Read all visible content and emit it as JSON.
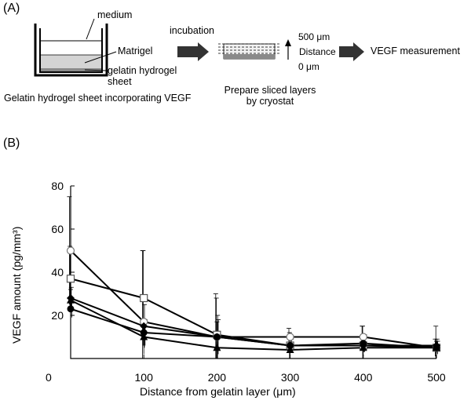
{
  "panel_a": {
    "label": "(A)",
    "medium": "medium",
    "matrigel": "Matrigel",
    "gelatin_line1": "gelatin hydrogel",
    "gelatin_line2": "sheet",
    "caption_left": "Gelatin hydrogel sheet incorporating VEGF",
    "incubation": "incubation",
    "top_label": "500 μm",
    "distance_label": "Distance",
    "bottom_label": "0 μm",
    "prepare_line1": "Prepare sliced layers",
    "prepare_line2": "by cryostat",
    "vegf_measurement": "VEGF measurement",
    "colors": {
      "matrigel": "#d4d4d4",
      "gelatin": "#8a8a8a",
      "arrow": "#333333"
    }
  },
  "panel_b": {
    "label": "(B)"
  },
  "chart_data": {
    "type": "line",
    "x": [
      0,
      100,
      200,
      300,
      400,
      500
    ],
    "xlim": [
      0,
      500
    ],
    "ylim": [
      0,
      80
    ],
    "x_ticks": [
      "0",
      "100",
      "200",
      "300",
      "400",
      "500"
    ],
    "y_ticks": [
      "20",
      "40",
      "60",
      "80"
    ],
    "xlabel": "Distance from gelatin layer (μm)",
    "ylabel": "VEGF amount (pg/mm³)",
    "grid": false,
    "legend": "none",
    "series": [
      {
        "marker": "open-circle",
        "values": [
          50,
          17,
          10,
          10,
          10,
          5
        ],
        "errors": [
          25,
          33,
          20,
          4,
          5,
          4
        ]
      },
      {
        "marker": "open-square",
        "values": [
          37,
          28,
          11,
          6,
          6,
          5
        ],
        "errors": [
          15,
          22,
          17,
          6,
          9,
          10
        ]
      },
      {
        "marker": "filled-triangle",
        "values": [
          27,
          10,
          5,
          4,
          5,
          5
        ],
        "errors": [
          5,
          8,
          12,
          3,
          4,
          3
        ]
      },
      {
        "marker": "filled-diamond",
        "values": [
          28,
          15,
          10,
          6,
          6,
          6
        ],
        "errors": [
          5,
          10,
          10,
          3,
          3,
          3
        ]
      },
      {
        "marker": "filled-circle",
        "values": [
          23,
          12,
          10,
          6,
          7,
          5
        ],
        "errors": [
          4,
          6,
          8,
          3,
          4,
          3
        ]
      }
    ]
  }
}
